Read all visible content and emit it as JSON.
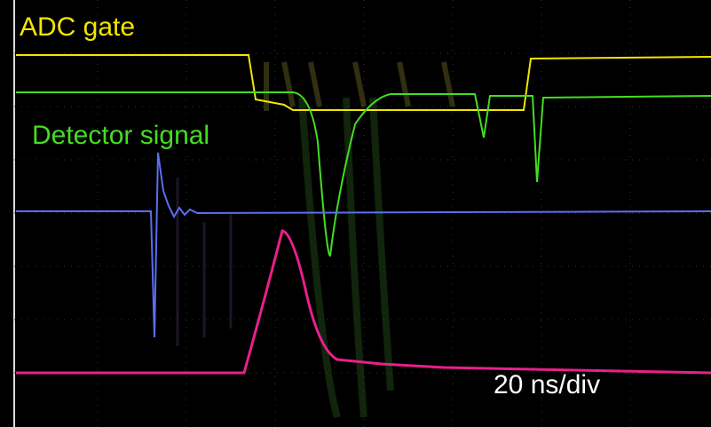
{
  "labels": {
    "gate": "ADC gate",
    "detector": "Detector signal",
    "timebase": "20 ns/div"
  }
}
